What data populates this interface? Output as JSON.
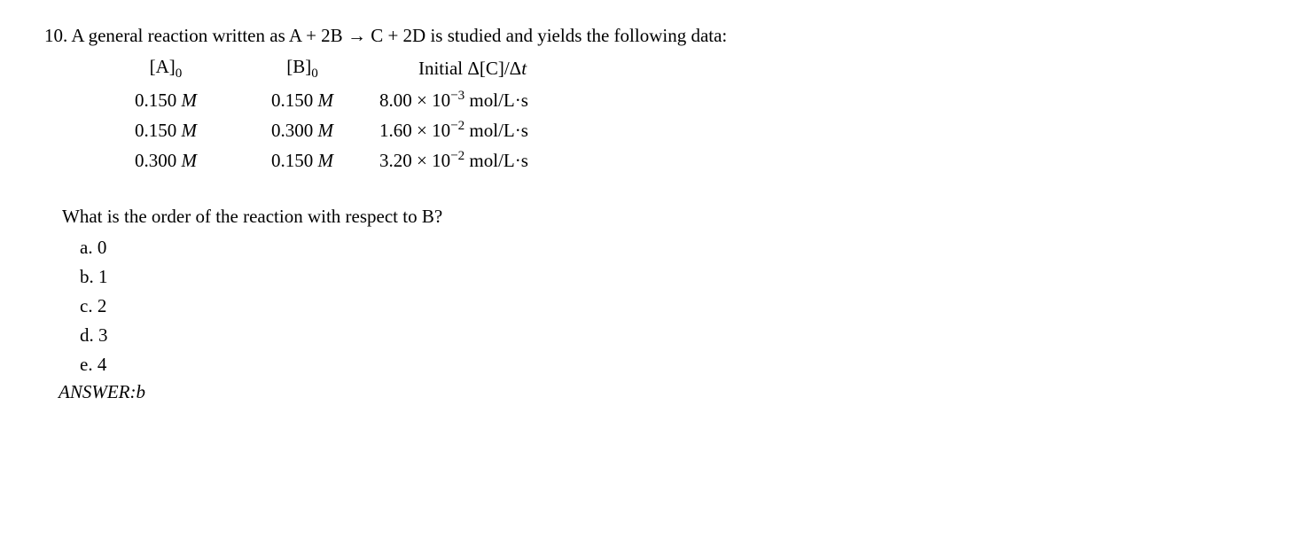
{
  "question_number": "10.",
  "stem_before": "A general reaction written as A + 2B",
  "arrow": "→",
  "stem_after": "C + 2D is studied and yields the following data:",
  "table": {
    "headers": {
      "a_open": "[A]",
      "a_sub": "0",
      "b_open": "[B]",
      "b_sub": "0",
      "c_label_1": "Initial Δ[C]/Δ",
      "c_label_t": "t"
    },
    "rows": [
      {
        "a": "0.150 ",
        "a_unit": "M",
        "b": "0.150 ",
        "b_unit": "M",
        "c_coef": "8.00 × 10",
        "c_exp": "−3",
        "c_unit": " mol/L·s"
      },
      {
        "a": "0.150 ",
        "a_unit": "M",
        "b": "0.300 ",
        "b_unit": "M",
        "c_coef": "1.60 × 10",
        "c_exp": "−2",
        "c_unit": " mol/L·s"
      },
      {
        "a": "0.300 ",
        "a_unit": "M",
        "b": "0.150 ",
        "b_unit": "M",
        "c_coef": "3.20 × 10",
        "c_exp": "−2",
        "c_unit": " mol/L·s"
      }
    ]
  },
  "sub_question": "What is the order of the reaction with respect to B?",
  "choices": [
    {
      "label": "a.",
      "text": "0"
    },
    {
      "label": "b.",
      "text": "1"
    },
    {
      "label": "c.",
      "text": "2"
    },
    {
      "label": "d.",
      "text": "3"
    },
    {
      "label": "e.",
      "text": "4"
    }
  ],
  "answer_label": "ANSWER:",
  "answer_value": "b"
}
